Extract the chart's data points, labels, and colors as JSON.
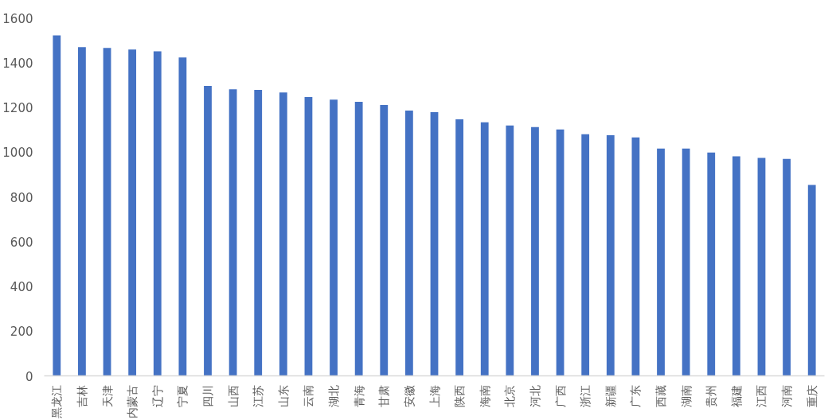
{
  "chart_data": {
    "type": "bar",
    "categories": [
      "黑龙江",
      "吉林",
      "天津",
      "内蒙古",
      "辽宁",
      "宁夏",
      "四川",
      "山西",
      "江苏",
      "山东",
      "云南",
      "湖北",
      "青海",
      "甘肃",
      "安徽",
      "上海",
      "陕西",
      "海南",
      "北京",
      "河北",
      "广西",
      "浙江",
      "新疆",
      "广东",
      "西藏",
      "湖南",
      "贵州",
      "福建",
      "江西",
      "河南",
      "重庆"
    ],
    "values": [
      1522,
      1469,
      1466,
      1459,
      1451,
      1423,
      1296,
      1281,
      1278,
      1267,
      1246,
      1235,
      1225,
      1211,
      1186,
      1179,
      1147,
      1133,
      1119,
      1112,
      1101,
      1080,
      1076,
      1066,
      1016,
      1016,
      998,
      981,
      974,
      970,
      853
    ],
    "color": "#4472c4",
    "ylim": [
      0,
      1600
    ],
    "yticks": [
      0,
      200,
      400,
      600,
      800,
      1000,
      1200,
      1400,
      1600
    ],
    "grid": false
  }
}
